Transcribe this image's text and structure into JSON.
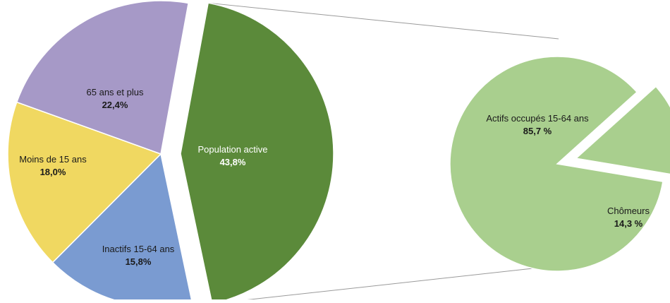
{
  "chart_data": [
    {
      "type": "pie",
      "title": "",
      "slices": [
        {
          "label": "Population active",
          "value": 43.8,
          "value_label": "43,8%",
          "color": "#5b8a3a",
          "exploded": true
        },
        {
          "label": "Inactifs 15-64 ans",
          "value": 15.8,
          "value_label": "15,8%",
          "color": "#7a9bd1",
          "exploded": false
        },
        {
          "label": "Moins de 15 ans",
          "value": 18.0,
          "value_label": "18,0%",
          "color": "#f0d861",
          "exploded": false
        },
        {
          "label": "65 ans et plus",
          "value": 22.4,
          "value_label": "22,4%",
          "color": "#a699c7",
          "exploded": false
        }
      ]
    },
    {
      "type": "pie",
      "title": "",
      "breakdown_of": "Population active",
      "slices": [
        {
          "label": "Actifs occupés 15-64 ans",
          "value": 85.7,
          "value_label": "85,7 %",
          "color": "#a9cf8e",
          "exploded": false
        },
        {
          "label": "Chômeurs",
          "value": 14.3,
          "value_label": "14,3 %",
          "color": "#a9cf8e",
          "exploded": true
        }
      ]
    }
  ]
}
